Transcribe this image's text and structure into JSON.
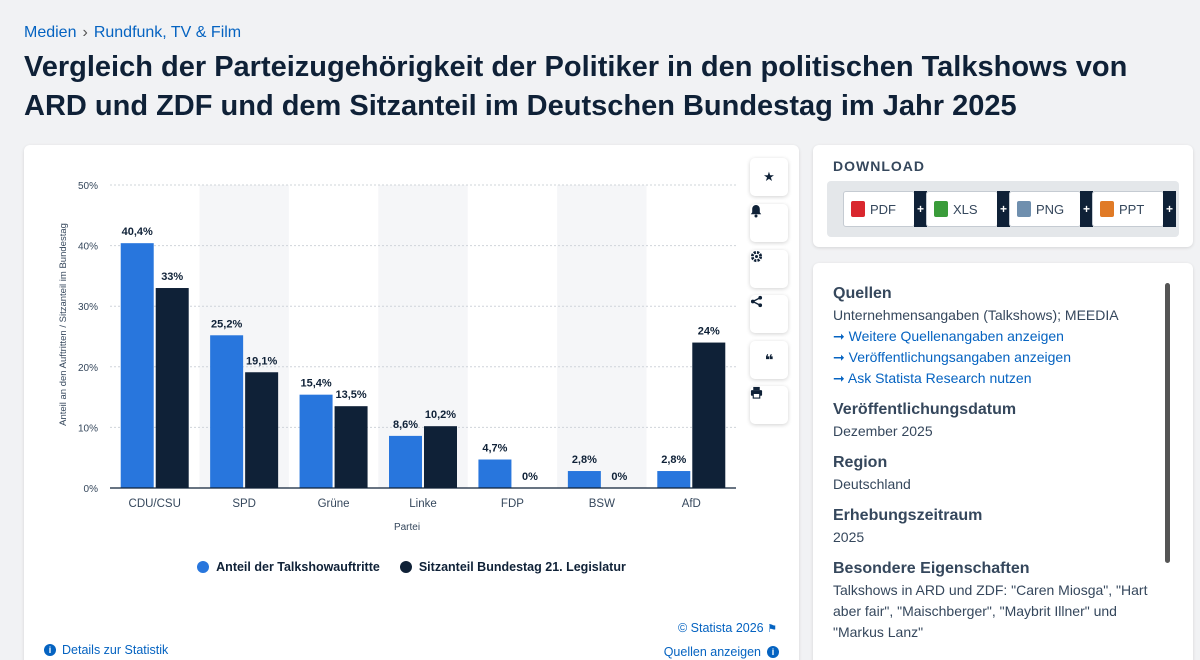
{
  "breadcrumb": {
    "item1": "Medien",
    "separator": "›",
    "item2": "Rundfunk, TV & Film"
  },
  "page_title": "Vergleich der Parteizugehörigkeit der Politiker in den politischen Talkshows von ARD und ZDF und dem Sitzanteil im Deutschen Bundestag im Jahr 2025",
  "chart_data": {
    "type": "bar",
    "categories": [
      "CDU/CSU",
      "SPD",
      "Grüne",
      "Linke",
      "FDP",
      "BSW",
      "AfD"
    ],
    "series": [
      {
        "name": "Anteil der Talkshowauftritte",
        "values": [
          40.4,
          25.2,
          15.4,
          8.6,
          4.7,
          2.8,
          2.8
        ],
        "labels": [
          "40,4%",
          "25,2%",
          "15,4%",
          "8,6%",
          "4,7%",
          "2,8%",
          "2,8%"
        ],
        "color": "#2876dd"
      },
      {
        "name": "Sitzanteil Bundestag 21. Legislatur",
        "values": [
          33,
          19.1,
          13.5,
          10.2,
          0,
          0,
          24
        ],
        "labels": [
          "33%",
          "19,1%",
          "13,5%",
          "10,2%",
          "0%",
          "0%",
          "24%"
        ],
        "color": "#0f2137"
      }
    ],
    "yticks": [
      "0%",
      "10%",
      "20%",
      "30%",
      "40%",
      "50%"
    ],
    "ylim": [
      0,
      50
    ],
    "xlabel": "Partei",
    "ylabel": "Anteil an den Auftritten / Sitzanteil im Bundestag",
    "grid": true,
    "legend_position": "bottom"
  },
  "chart_tools": {
    "icons": [
      "star-icon",
      "bell-icon",
      "gear-icon",
      "share-icon",
      "quote-icon",
      "print-icon"
    ]
  },
  "copyright": "© Statista 2026",
  "details_link": "Details zur Statistik",
  "sources_link": "Quellen anzeigen",
  "download": {
    "title": "DOWNLOAD",
    "buttons": [
      {
        "label": "PDF",
        "color": "#d9272e"
      },
      {
        "label": "XLS",
        "color": "#3a9c3a"
      },
      {
        "label": "PNG",
        "color": "#6f8fae"
      },
      {
        "label": "PPT",
        "color": "#e07a26"
      }
    ],
    "plus": "+"
  },
  "info": {
    "quellen_title": "Quellen",
    "quellen_value": "Unternehmensangaben (Talkshows); MEEDIA",
    "links": [
      "Weitere Quellenangaben anzeigen",
      "Veröffentlichungsangaben anzeigen",
      "Ask Statista Research nutzen"
    ],
    "arrow": "➞",
    "date_title": "Veröffentlichungsdatum",
    "date_value": "Dezember 2025",
    "region_title": "Region",
    "region_value": "Deutschland",
    "period_title": "Erhebungszeitraum",
    "period_value": "2025",
    "props_title": "Besondere Eigenschaften",
    "props_value": "Talkshows in ARD und ZDF: \"Caren Miosga\", \"Hart aber fair\", \"Maischberger\", \"Maybrit Illner\" und \"Markus Lanz\""
  }
}
